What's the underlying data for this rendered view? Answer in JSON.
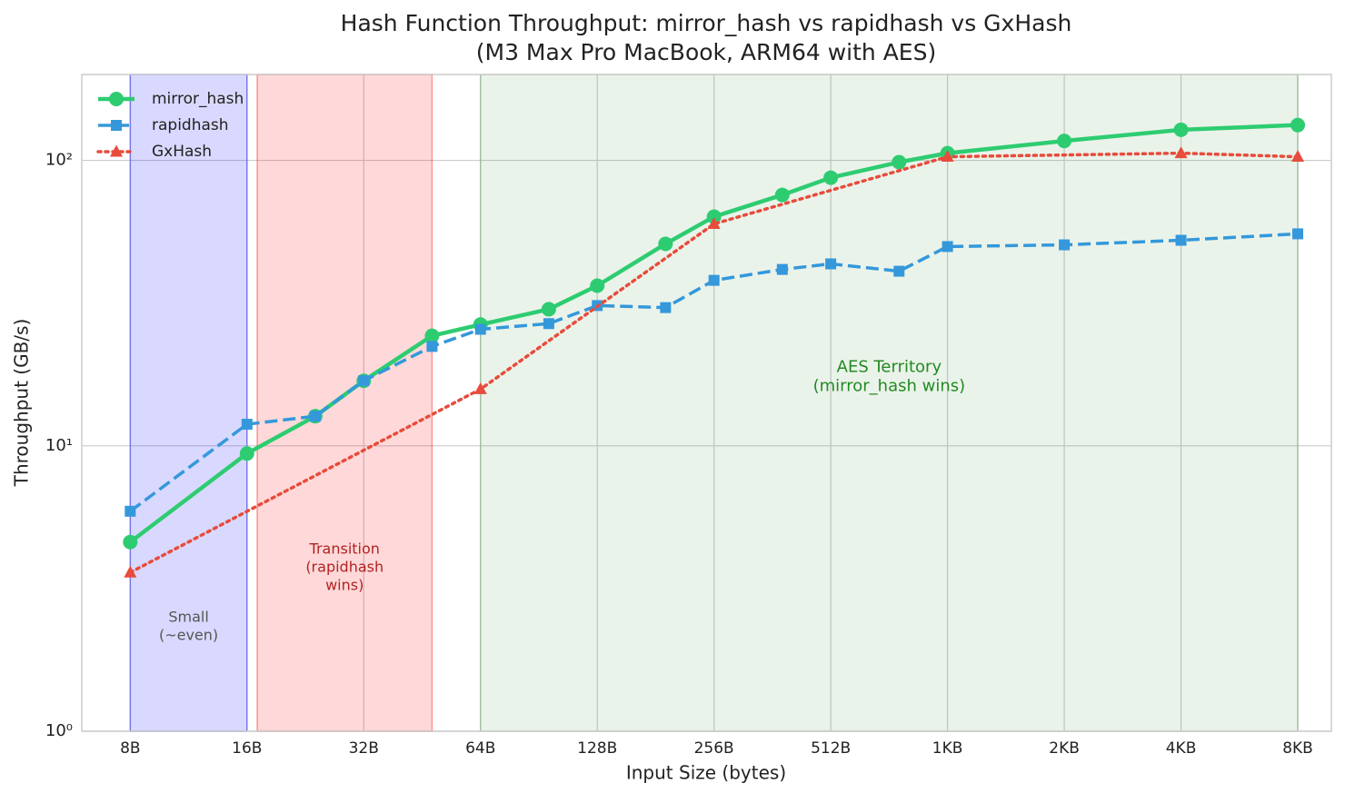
{
  "chart_data": {
    "type": "line",
    "title": "Hash Function Throughput: mirror_hash vs rapidhash vs GxHash",
    "subtitle": "(M3 Max Pro MacBook, ARM64 with AES)",
    "xlabel": "Input Size (bytes)",
    "ylabel": "Throughput (GB/s)",
    "xscale": "log",
    "yscale": "log",
    "xlim": [
      6,
      10000
    ],
    "ylim": [
      1,
      200
    ],
    "xticks": [
      {
        "value": 8,
        "label": "8B"
      },
      {
        "value": 16,
        "label": "16B"
      },
      {
        "value": 32,
        "label": "32B"
      },
      {
        "value": 64,
        "label": "64B"
      },
      {
        "value": 128,
        "label": "128B"
      },
      {
        "value": 256,
        "label": "256B"
      },
      {
        "value": 512,
        "label": "512B"
      },
      {
        "value": 1024,
        "label": "1KB"
      },
      {
        "value": 2048,
        "label": "2KB"
      },
      {
        "value": 4096,
        "label": "4KB"
      },
      {
        "value": 8192,
        "label": "8KB"
      }
    ],
    "yticks": [
      {
        "value": 1,
        "label": "10⁰"
      },
      {
        "value": 10,
        "label": "10¹"
      },
      {
        "value": 100,
        "label": "10²"
      }
    ],
    "grid": true,
    "legend": "upper-left",
    "regions": [
      {
        "x0": 8,
        "x1": 16,
        "color": "#0000ff",
        "opacity": 0.15,
        "label_color": "#555555",
        "label": [
          "Small",
          "(~even)"
        ]
      },
      {
        "x0": 17,
        "x1": 48,
        "color": "#ff0000",
        "opacity": 0.15,
        "label_color": "#b22222",
        "label": [
          "Transition",
          "(rapidhash",
          "wins)"
        ]
      },
      {
        "x0": 64,
        "x1": 8192,
        "color": "#2e8b2e",
        "opacity": 0.1,
        "label_color": "#228b22",
        "label": [
          "AES Territory",
          "(mirror_hash wins)"
        ]
      }
    ],
    "series": [
      {
        "name": "mirror_hash",
        "color": "#2ecc71",
        "linestyle": "solid",
        "marker": "circle",
        "x": [
          8,
          16,
          24,
          32,
          48,
          64,
          96,
          128,
          192,
          256,
          384,
          512,
          768,
          1024,
          2048,
          4096,
          8192
        ],
        "values": [
          4.6,
          9.4,
          12.7,
          16.9,
          24.3,
          26.6,
          30.1,
          36.4,
          51,
          63.5,
          75.7,
          87,
          98.6,
          106,
          117,
          128,
          133
        ]
      },
      {
        "name": "rapidhash",
        "color": "#3498db",
        "linestyle": "dashed",
        "marker": "square",
        "x": [
          8,
          16,
          24,
          32,
          48,
          64,
          96,
          128,
          192,
          256,
          384,
          512,
          768,
          1024,
          2048,
          4096,
          8192
        ],
        "values": [
          5.9,
          11.9,
          12.7,
          16.9,
          22.3,
          25.6,
          26.8,
          31,
          30.5,
          38,
          41.5,
          43.4,
          40.9,
          49.9,
          50.6,
          52.5,
          55.3
        ]
      },
      {
        "name": "GxHash",
        "color": "#e74c3c",
        "linestyle": "dotted",
        "marker": "triangle",
        "x": [
          8,
          64,
          256,
          1024,
          4096,
          8192
        ],
        "values": [
          3.6,
          15.8,
          59.9,
          103,
          106,
          103
        ]
      }
    ]
  }
}
